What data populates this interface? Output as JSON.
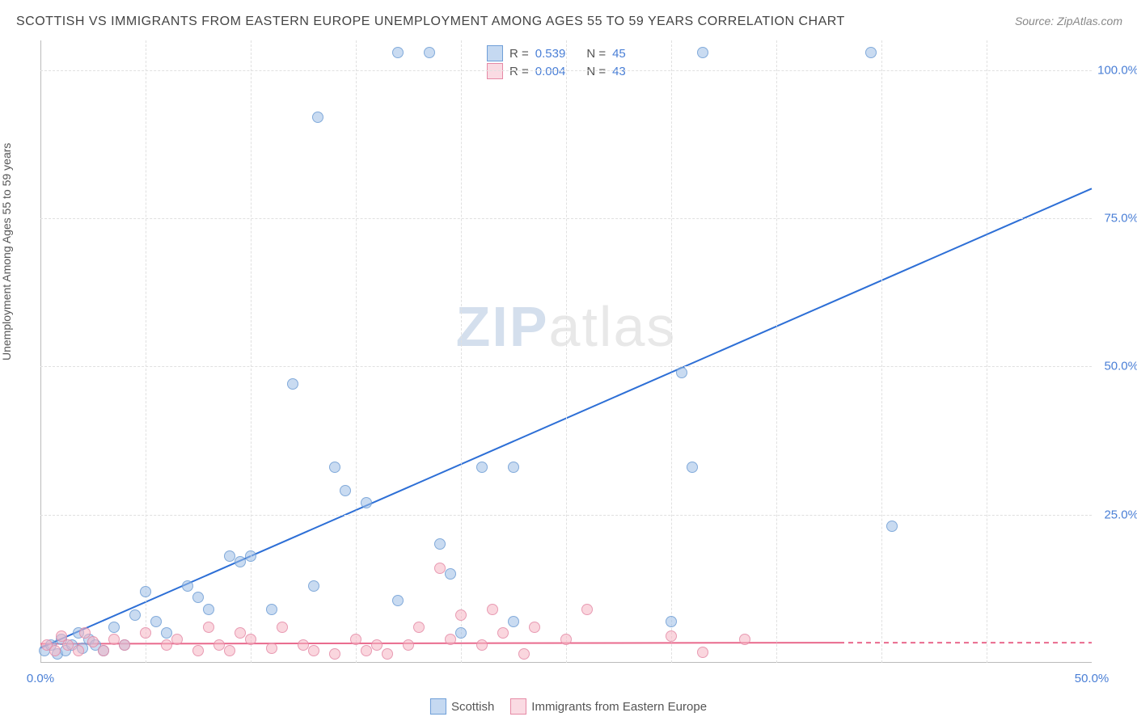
{
  "title": "SCOTTISH VS IMMIGRANTS FROM EASTERN EUROPE UNEMPLOYMENT AMONG AGES 55 TO 59 YEARS CORRELATION CHART",
  "source": "Source: ZipAtlas.com",
  "y_axis_label": "Unemployment Among Ages 55 to 59 years",
  "watermark": {
    "part1": "ZIP",
    "part2": "atlas"
  },
  "chart": {
    "type": "scatter",
    "xlim": [
      0,
      50
    ],
    "ylim": [
      0,
      105
    ],
    "x_ticks": [
      {
        "pos": 0,
        "label": "0.0%"
      },
      {
        "pos": 50,
        "label": "50.0%"
      }
    ],
    "y_ticks": [
      {
        "pos": 25,
        "label": "25.0%"
      },
      {
        "pos": 50,
        "label": "50.0%"
      },
      {
        "pos": 75,
        "label": "75.0%"
      },
      {
        "pos": 100,
        "label": "100.0%"
      }
    ],
    "x_grid": [
      5,
      10,
      15,
      20,
      25,
      30,
      35,
      40,
      45
    ],
    "y_grid": [
      25,
      50,
      75,
      100
    ],
    "background_color": "#ffffff",
    "grid_color": "#e0e0e0",
    "axis_color": "#bbbbbb",
    "label_color": "#4a7fd6",
    "marker_size": 14,
    "series": [
      {
        "id": "scottish",
        "legend_label": "Scottish",
        "fill": "rgba(157,190,230,0.55)",
        "stroke": "rgba(100,150,210,0.7)",
        "swatch_fill": "#c5d9f1",
        "swatch_stroke": "#6f9fd8",
        "R": "0.539",
        "N": "45",
        "trend": {
          "x1": 0,
          "y1": 2.5,
          "x2": 50,
          "y2": 80,
          "color": "#2d6fd6",
          "width": 2,
          "dash": "none",
          "dash_ext": false
        },
        "points": [
          {
            "x": 0.2,
            "y": 2
          },
          {
            "x": 0.5,
            "y": 3
          },
          {
            "x": 0.8,
            "y": 1.5
          },
          {
            "x": 1.0,
            "y": 4
          },
          {
            "x": 1.2,
            "y": 2
          },
          {
            "x": 1.5,
            "y": 3
          },
          {
            "x": 1.8,
            "y": 5
          },
          {
            "x": 2.0,
            "y": 2.5
          },
          {
            "x": 2.3,
            "y": 4
          },
          {
            "x": 2.6,
            "y": 3
          },
          {
            "x": 3.0,
            "y": 2
          },
          {
            "x": 3.5,
            "y": 6
          },
          {
            "x": 4.0,
            "y": 3
          },
          {
            "x": 4.5,
            "y": 8
          },
          {
            "x": 5.0,
            "y": 12
          },
          {
            "x": 5.5,
            "y": 7
          },
          {
            "x": 6.0,
            "y": 5
          },
          {
            "x": 7.0,
            "y": 13
          },
          {
            "x": 7.5,
            "y": 11
          },
          {
            "x": 8.0,
            "y": 9
          },
          {
            "x": 9.0,
            "y": 18
          },
          {
            "x": 9.5,
            "y": 17
          },
          {
            "x": 10.0,
            "y": 18
          },
          {
            "x": 11.0,
            "y": 9
          },
          {
            "x": 12.0,
            "y": 47
          },
          {
            "x": 13.0,
            "y": 13
          },
          {
            "x": 13.2,
            "y": 92
          },
          {
            "x": 14.0,
            "y": 33
          },
          {
            "x": 14.5,
            "y": 29
          },
          {
            "x": 15.5,
            "y": 27
          },
          {
            "x": 17.0,
            "y": 10.5
          },
          {
            "x": 17.0,
            "y": 103
          },
          {
            "x": 18.5,
            "y": 103
          },
          {
            "x": 19.0,
            "y": 20
          },
          {
            "x": 19.5,
            "y": 15
          },
          {
            "x": 20.0,
            "y": 5
          },
          {
            "x": 21.0,
            "y": 33
          },
          {
            "x": 22.5,
            "y": 7
          },
          {
            "x": 22.5,
            "y": 33
          },
          {
            "x": 30.0,
            "y": 7
          },
          {
            "x": 30.5,
            "y": 49
          },
          {
            "x": 31.0,
            "y": 33
          },
          {
            "x": 31.5,
            "y": 103
          },
          {
            "x": 39.5,
            "y": 103
          },
          {
            "x": 40.5,
            "y": 23
          }
        ]
      },
      {
        "id": "immigrants",
        "legend_label": "Immigrants from Eastern Europe",
        "fill": "rgba(245,180,195,0.55)",
        "stroke": "rgba(225,130,160,0.7)",
        "swatch_fill": "#fadbe3",
        "swatch_stroke": "#e68aa6",
        "R": "0.004",
        "N": "43",
        "trend": {
          "x1": 0,
          "y1": 3.2,
          "x2": 38,
          "y2": 3.4,
          "color": "#e96a8d",
          "width": 2,
          "dash": "none",
          "ext_x2": 50,
          "ext_y2": 3.4,
          "dash_ext": true
        },
        "points": [
          {
            "x": 0.3,
            "y": 3
          },
          {
            "x": 0.7,
            "y": 2
          },
          {
            "x": 1.0,
            "y": 4.5
          },
          {
            "x": 1.3,
            "y": 3
          },
          {
            "x": 1.8,
            "y": 2
          },
          {
            "x": 2.1,
            "y": 5
          },
          {
            "x": 2.5,
            "y": 3.5
          },
          {
            "x": 3.0,
            "y": 2
          },
          {
            "x": 3.5,
            "y": 4
          },
          {
            "x": 4.0,
            "y": 3
          },
          {
            "x": 5.0,
            "y": 5
          },
          {
            "x": 6.0,
            "y": 3
          },
          {
            "x": 6.5,
            "y": 4
          },
          {
            "x": 7.5,
            "y": 2
          },
          {
            "x": 8.0,
            "y": 6
          },
          {
            "x": 8.5,
            "y": 3
          },
          {
            "x": 9.0,
            "y": 2
          },
          {
            "x": 9.5,
            "y": 5
          },
          {
            "x": 10.0,
            "y": 4
          },
          {
            "x": 11.0,
            "y": 2.5
          },
          {
            "x": 11.5,
            "y": 6
          },
          {
            "x": 12.5,
            "y": 3
          },
          {
            "x": 13.0,
            "y": 2
          },
          {
            "x": 14.0,
            "y": 1.5
          },
          {
            "x": 15.0,
            "y": 4
          },
          {
            "x": 15.5,
            "y": 2
          },
          {
            "x": 16.0,
            "y": 3
          },
          {
            "x": 16.5,
            "y": 1.5
          },
          {
            "x": 17.5,
            "y": 3
          },
          {
            "x": 18.0,
            "y": 6
          },
          {
            "x": 19.0,
            "y": 16
          },
          {
            "x": 19.5,
            "y": 4
          },
          {
            "x": 20.0,
            "y": 8
          },
          {
            "x": 21.0,
            "y": 3
          },
          {
            "x": 21.5,
            "y": 9
          },
          {
            "x": 22.0,
            "y": 5
          },
          {
            "x": 23.0,
            "y": 1.5
          },
          {
            "x": 23.5,
            "y": 6
          },
          {
            "x": 25.0,
            "y": 4
          },
          {
            "x": 26.0,
            "y": 9
          },
          {
            "x": 30.0,
            "y": 4.5
          },
          {
            "x": 31.5,
            "y": 1.8
          },
          {
            "x": 33.5,
            "y": 4
          }
        ]
      }
    ],
    "stats_legend": {
      "r_label": "R  =",
      "n_label": "N  ="
    },
    "bottom_legend_items": [
      "scottish",
      "immigrants"
    ]
  }
}
